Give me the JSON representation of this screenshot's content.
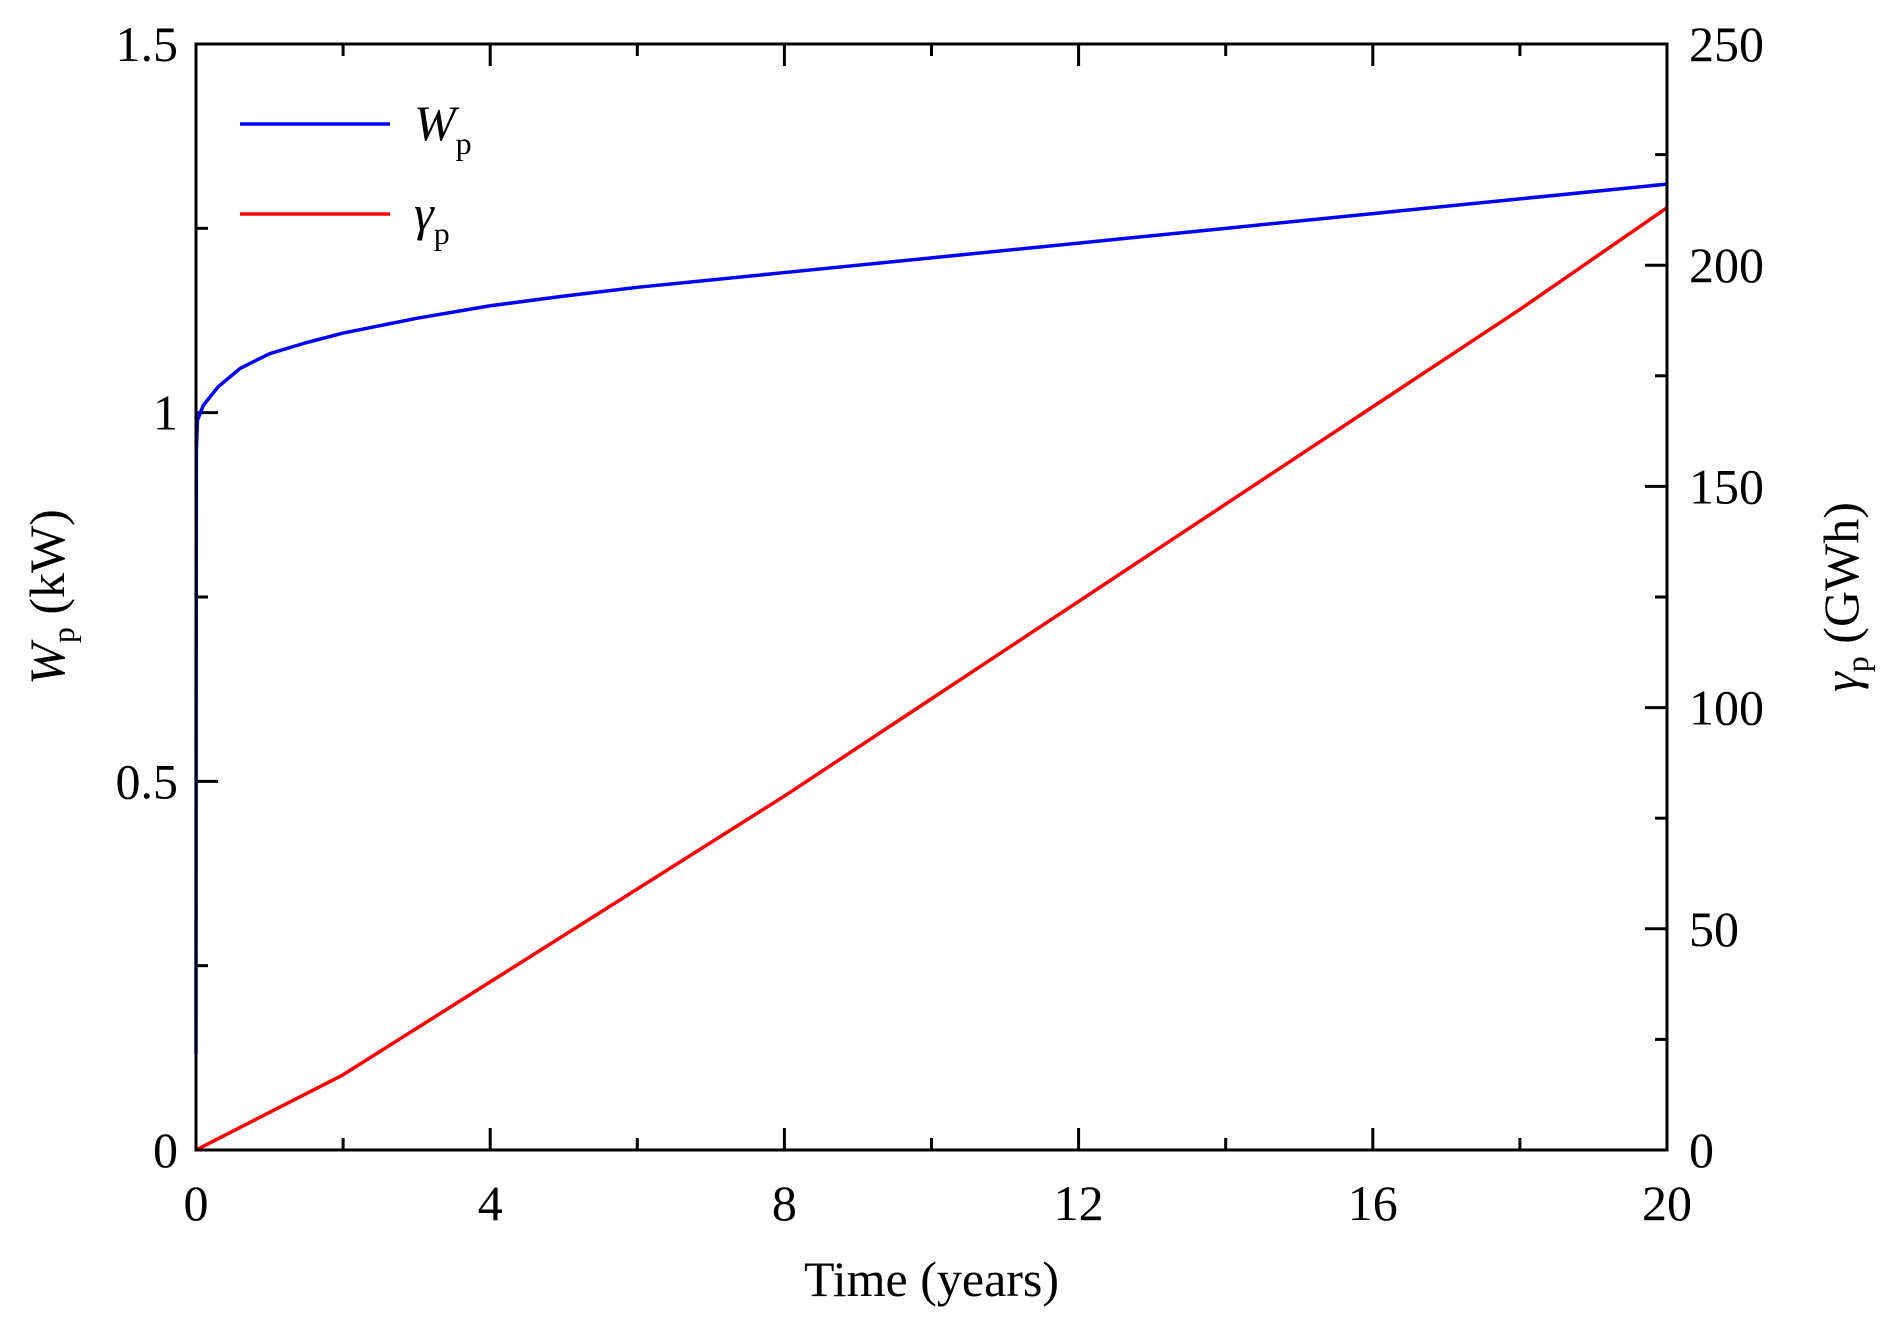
{
  "chart_data": {
    "type": "line",
    "xlabel": "Time (years)",
    "ylabel_left": {
      "symbol": "W",
      "subscript": "p",
      "unit": "(kW)"
    },
    "ylabel_right": {
      "symbol": "γ",
      "subscript": "p",
      "unit": "(GWh)"
    },
    "xlim": [
      0,
      20
    ],
    "ylim_left": [
      0,
      1.5
    ],
    "ylim_right": [
      0,
      250
    ],
    "x_ticks": [
      0,
      4,
      8,
      12,
      16,
      20
    ],
    "x_tick_labels": [
      "0",
      "4",
      "8",
      "12",
      "16",
      "20"
    ],
    "y_left_ticks": [
      0,
      0.5,
      1,
      1.5
    ],
    "y_left_tick_labels": [
      "0",
      "0.5",
      "1",
      "1.5"
    ],
    "y_right_ticks": [
      0,
      50,
      100,
      150,
      200,
      250
    ],
    "y_right_tick_labels": [
      "0",
      "50",
      "100",
      "150",
      "200",
      "250"
    ],
    "grid": false,
    "legend_position": "top-left",
    "series": [
      {
        "name": "W",
        "name_subscript": "p",
        "axis": "left",
        "color": "#0000ff",
        "points": [
          [
            0,
            0.13
          ],
          [
            0.002,
            0.6
          ],
          [
            0.005,
            0.95
          ],
          [
            0.02,
            0.99
          ],
          [
            0.1,
            1.01
          ],
          [
            0.3,
            1.035
          ],
          [
            0.6,
            1.06
          ],
          [
            1.0,
            1.08
          ],
          [
            1.5,
            1.095
          ],
          [
            2,
            1.108
          ],
          [
            3,
            1.128
          ],
          [
            4,
            1.145
          ],
          [
            5,
            1.158
          ],
          [
            6,
            1.17
          ],
          [
            7,
            1.18
          ],
          [
            8,
            1.19
          ],
          [
            10,
            1.21
          ],
          [
            12,
            1.23
          ],
          [
            14,
            1.25
          ],
          [
            16,
            1.27
          ],
          [
            18,
            1.29
          ],
          [
            20,
            1.31
          ]
        ]
      },
      {
        "name": "γ",
        "name_subscript": "p",
        "axis": "right",
        "color": "#ff0000",
        "points": [
          [
            0,
            0
          ],
          [
            2,
            17
          ],
          [
            4,
            38
          ],
          [
            6,
            59
          ],
          [
            8,
            80
          ],
          [
            10,
            102
          ],
          [
            12,
            124
          ],
          [
            14,
            146
          ],
          [
            16,
            168
          ],
          [
            18,
            190
          ],
          [
            20,
            213
          ]
        ]
      }
    ]
  }
}
